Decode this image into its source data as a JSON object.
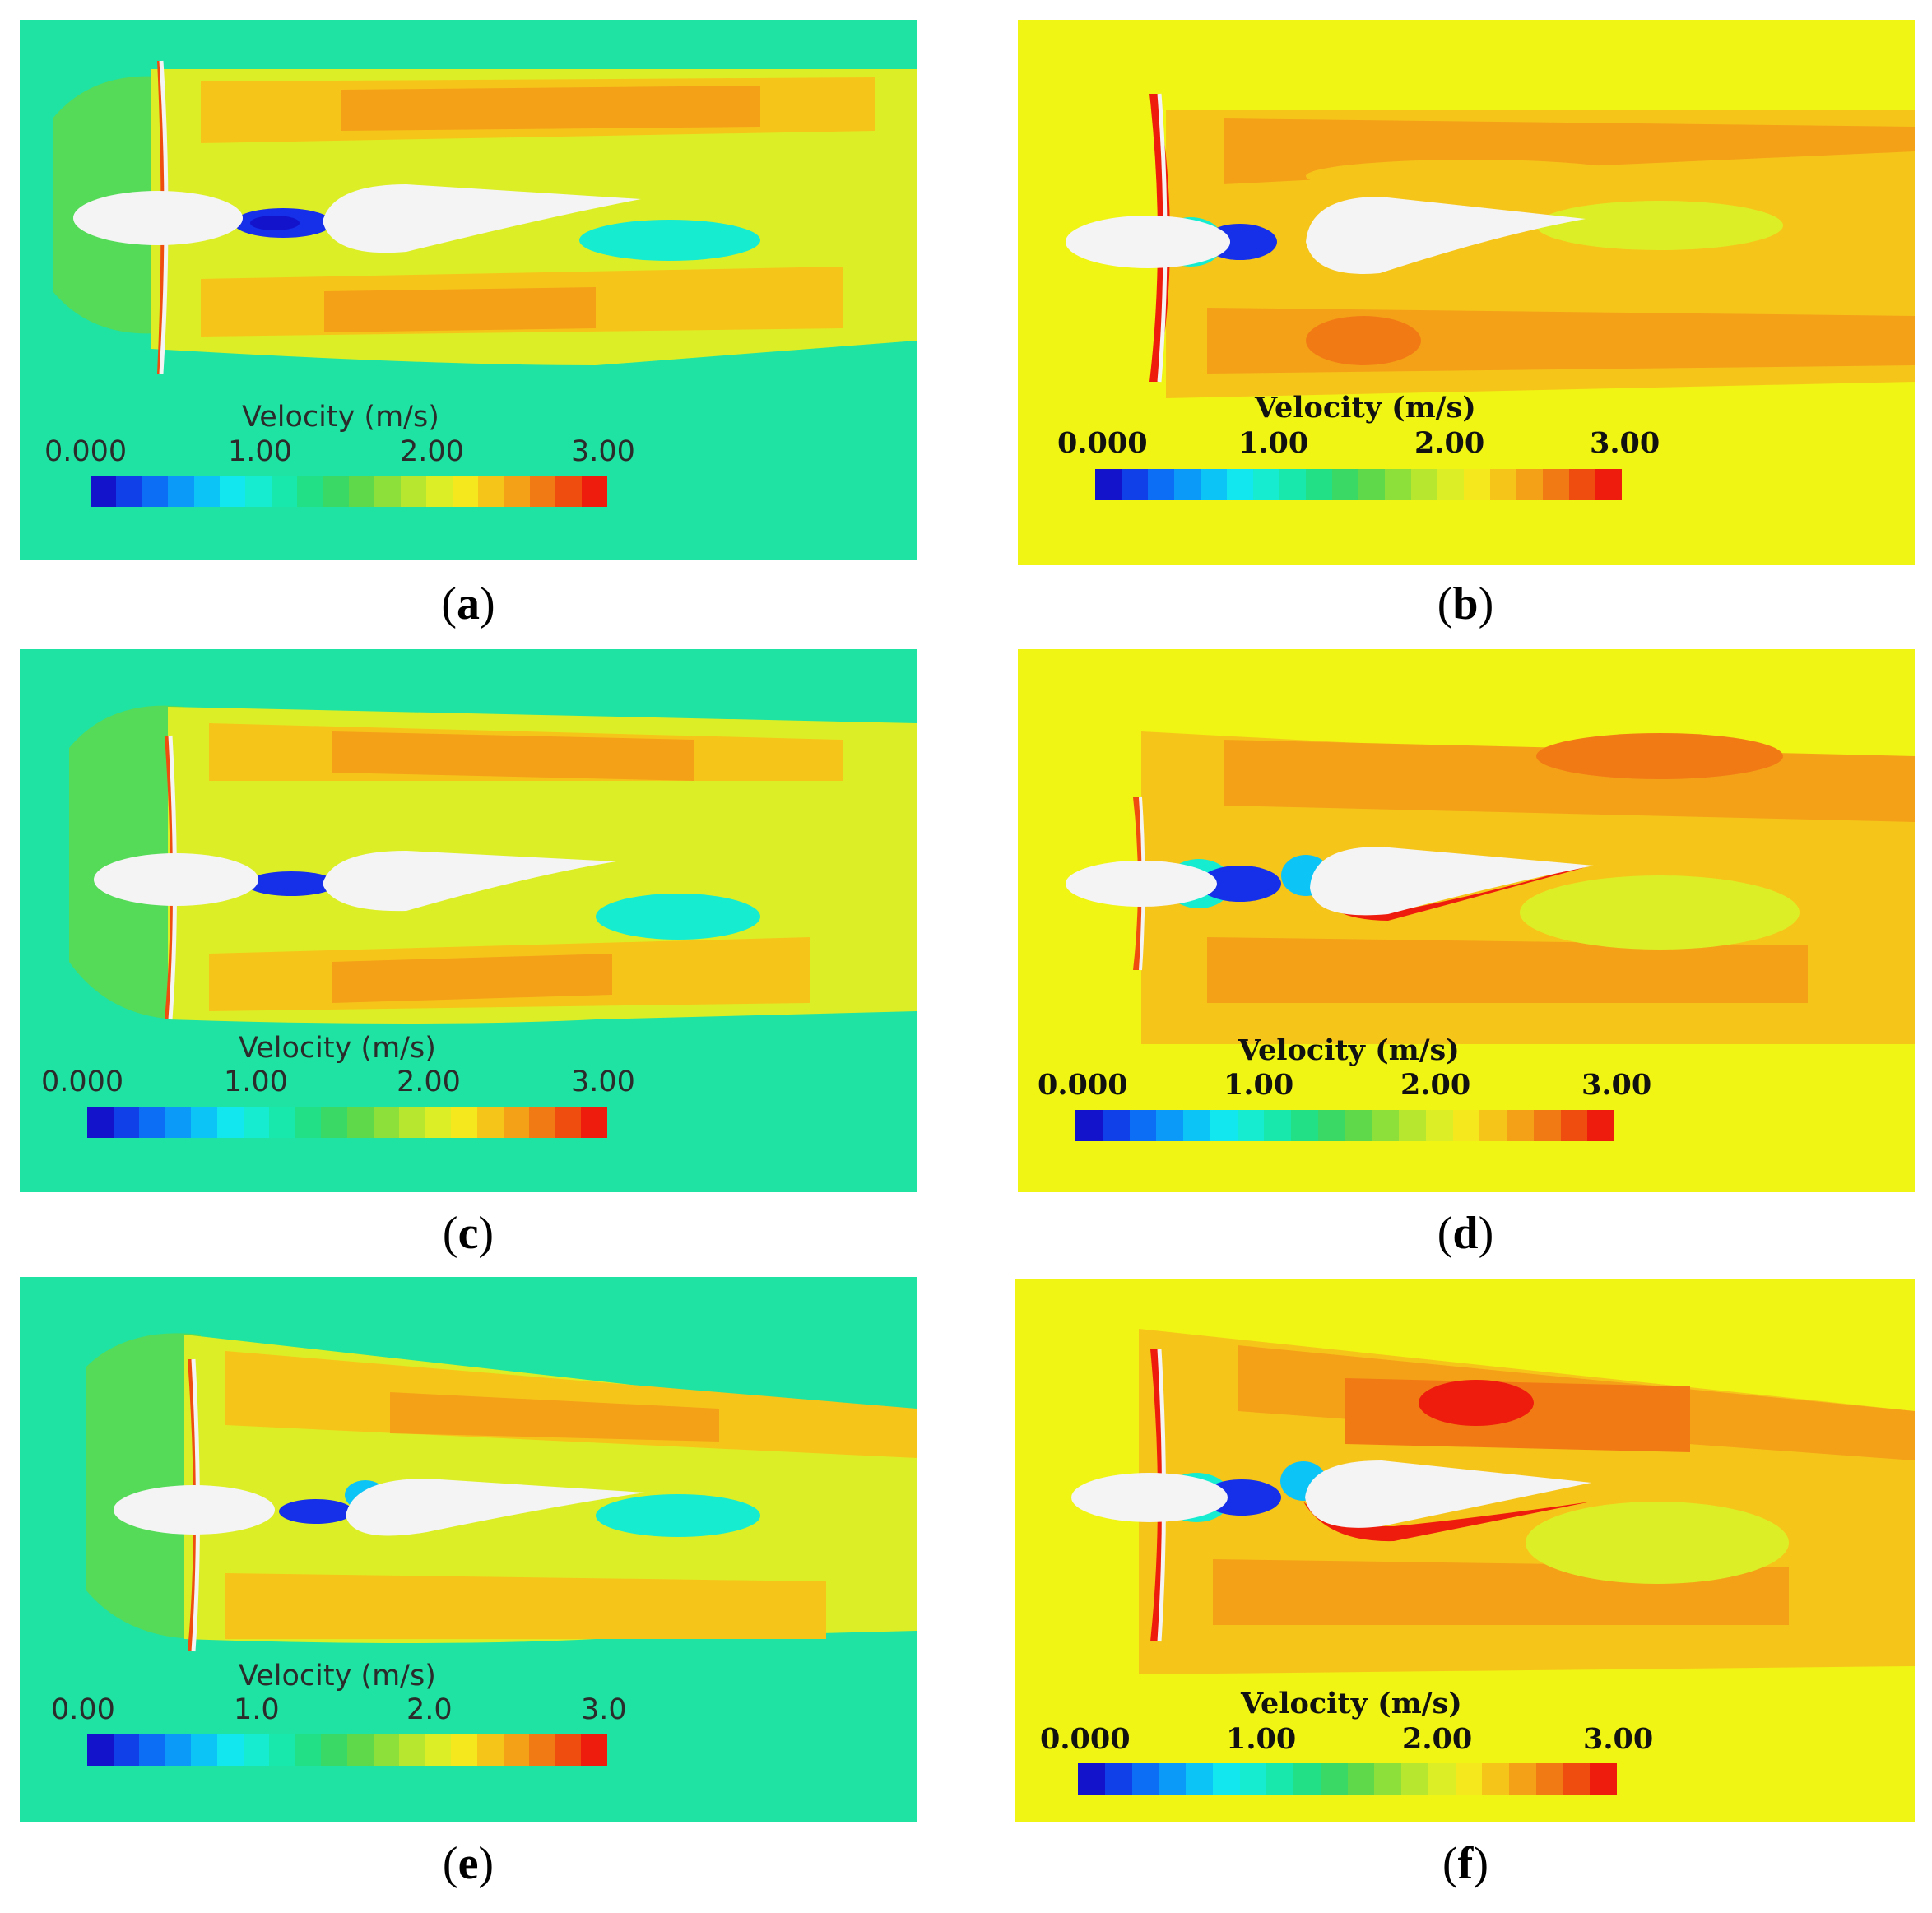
{
  "panels": [
    {
      "id": "a",
      "caption_letter": "a",
      "style": "green",
      "colorbar": {
        "title": "Velocity (m/s)",
        "ticks": [
          "0.000",
          "1.00",
          "2.00",
          "3.00"
        ]
      }
    },
    {
      "id": "b",
      "caption_letter": "b",
      "style": "yellow",
      "colorbar": {
        "title": "Velocity (m/s)",
        "ticks": [
          "0.000",
          "1.00",
          "2.00",
          "3.00"
        ]
      }
    },
    {
      "id": "c",
      "caption_letter": "c",
      "style": "green",
      "colorbar": {
        "title": "Velocity (m/s)",
        "ticks": [
          "0.000",
          "1.00",
          "2.00",
          "3.00"
        ]
      }
    },
    {
      "id": "d",
      "caption_letter": "d",
      "style": "yellow",
      "colorbar": {
        "title": "Velocity (m/s)",
        "ticks": [
          "0.000",
          "1.00",
          "2.00",
          "3.00"
        ]
      }
    },
    {
      "id": "e",
      "caption_letter": "e",
      "style": "green",
      "colorbar": {
        "title": "Velocity (m/s)",
        "ticks": [
          "0.00",
          "1.0",
          "2.0",
          "3.0"
        ]
      }
    },
    {
      "id": "f",
      "caption_letter": "f",
      "style": "yellow",
      "colorbar": {
        "title": "Velocity (m/s)",
        "ticks": [
          "0.000",
          "1.00",
          "2.00",
          "3.00"
        ]
      }
    }
  ],
  "caption_parens": {
    "open": "(",
    "close": ")"
  },
  "colors": {
    "green_background": "#1fe3a2",
    "yellow_background": "#f0f514",
    "body_fill": "#f4f4f4",
    "wake_orange": "#f4a21c",
    "wake_red": "#f21406",
    "low_velocity_blue": "#1530e8",
    "colormap": [
      "#1313cc",
      "#1040e8",
      "#0c6df5",
      "#0b9af7",
      "#0cc4f5",
      "#12e6ee",
      "#16ecd0",
      "#18e8ac",
      "#22e086",
      "#3ad865",
      "#5fd94a",
      "#8de03a",
      "#b7e82f",
      "#dcef26",
      "#f5e81c",
      "#f6c51a",
      "#f4a118",
      "#f27a15",
      "#ef4d10",
      "#ee1c0c"
    ]
  }
}
